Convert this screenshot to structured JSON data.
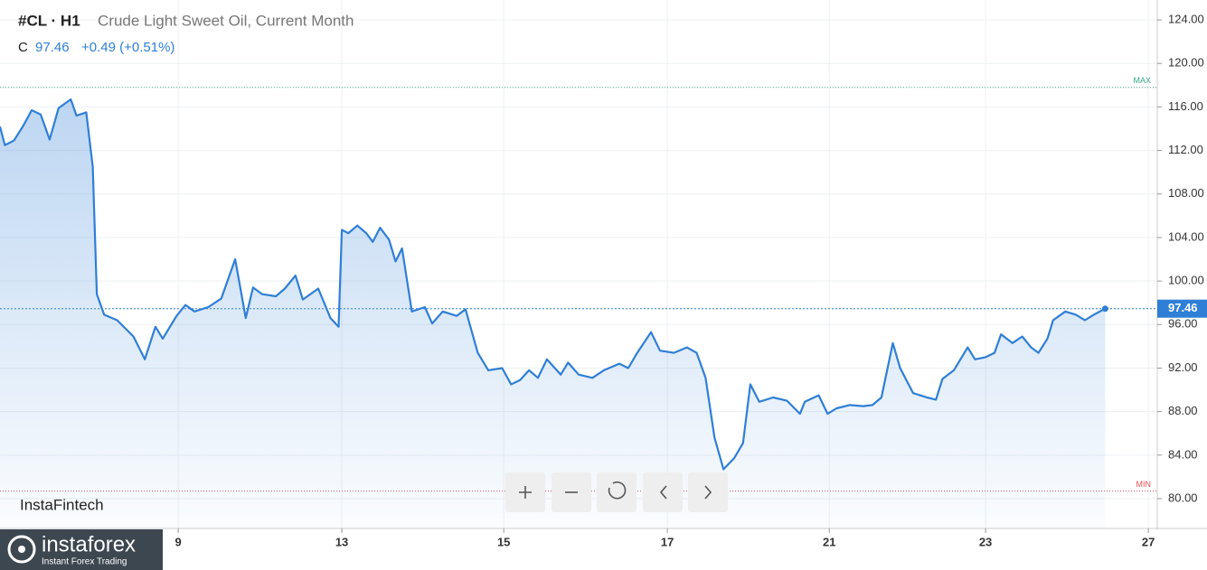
{
  "chart_data": {
    "type": "line",
    "symbol": "#CL · H1",
    "title": "Crude Light Sweet Oil, Current Month",
    "close_label": "C",
    "last_price": 97.46,
    "change": "+0.49 (+0.51%)",
    "watermark": "InstaFintech",
    "brand": "instaforex",
    "brand_tagline": "Instant Forex Trading",
    "color": "#2f7fd6",
    "max_line": {
      "label": "MAX",
      "value": 117.8,
      "color": "#3aa88a"
    },
    "min_line": {
      "label": "MIN",
      "value": 80.7,
      "color": "#e0505a"
    },
    "xlim": [
      0,
      14.22
    ],
    "xticks": [
      {
        "value": 2.19,
        "label": "9"
      },
      {
        "value": 4.2,
        "label": "13"
      },
      {
        "value": 6.19,
        "label": "15"
      },
      {
        "value": 8.2,
        "label": "17"
      },
      {
        "value": 10.19,
        "label": "21"
      },
      {
        "value": 12.11,
        "label": "23"
      },
      {
        "value": 14.11,
        "label": "27"
      }
    ],
    "ylim": [
      77.26,
      125.83
    ],
    "yticks": [
      {
        "value": 80,
        "label": "80.00"
      },
      {
        "value": 84,
        "label": "84.00"
      },
      {
        "value": 88,
        "label": "88.00"
      },
      {
        "value": 92,
        "label": "92.00"
      },
      {
        "value": 96,
        "label": "96.00"
      },
      {
        "value": 100,
        "label": "100.00"
      },
      {
        "value": 104,
        "label": "104.00"
      },
      {
        "value": 108,
        "label": "108.00"
      },
      {
        "value": 112,
        "label": "112.00"
      },
      {
        "value": 116,
        "label": "116.00"
      },
      {
        "value": 120,
        "label": "120.00"
      },
      {
        "value": 124,
        "label": "124.00"
      }
    ],
    "grid": true,
    "series": [
      {
        "name": "#CL",
        "x": [
          0,
          0.06,
          0.17,
          0.28,
          0.39,
          0.5,
          0.61,
          0.72,
          0.87,
          0.94,
          1.06,
          1.14,
          1.19,
          1.28,
          1.44,
          1.64,
          1.78,
          1.91,
          2,
          2.17,
          2.28,
          2.39,
          2.56,
          2.72,
          2.89,
          3.02,
          3.11,
          3.22,
          3.39,
          3.5,
          3.63,
          3.72,
          3.91,
          4.06,
          4.16,
          4.2,
          4.28,
          4.39,
          4.5,
          4.58,
          4.67,
          4.78,
          4.86,
          4.94,
          5.06,
          5.22,
          5.31,
          5.44,
          5.61,
          5.72,
          5.87,
          6,
          6.17,
          6.28,
          6.39,
          6.5,
          6.61,
          6.72,
          6.89,
          6.98,
          7.11,
          7.28,
          7.42,
          7.61,
          7.72,
          7.83,
          8,
          8.11,
          8.28,
          8.44,
          8.56,
          8.67,
          8.78,
          8.89,
          9.02,
          9.13,
          9.22,
          9.33,
          9.5,
          9.67,
          9.83,
          9.89,
          10.06,
          10.17,
          10.28,
          10.44,
          10.61,
          10.72,
          10.83,
          10.97,
          11.06,
          11.22,
          11.39,
          11.5,
          11.58,
          11.72,
          11.89,
          11.98,
          12.11,
          12.22,
          12.3,
          12.44,
          12.56,
          12.67,
          12.76,
          12.87,
          12.94,
          13.09,
          13.22,
          13.33,
          13.44,
          13.58
        ],
        "values": [
          114.2,
          112.5,
          112.9,
          114.2,
          115.7,
          115.3,
          113,
          115.9,
          116.7,
          115.2,
          115.5,
          110.5,
          98.8,
          96.9,
          96.4,
          94.9,
          92.8,
          95.8,
          94.7,
          96.8,
          97.8,
          97.2,
          97.6,
          98.4,
          102,
          96.6,
          99.4,
          98.8,
          98.6,
          99.3,
          100.5,
          98.3,
          99.3,
          96.6,
          95.8,
          104.7,
          104.4,
          105.1,
          104.4,
          103.6,
          104.9,
          103.8,
          101.8,
          103,
          97.2,
          97.6,
          96.1,
          97.2,
          96.8,
          97.4,
          93.4,
          91.8,
          92,
          90.5,
          90.9,
          91.8,
          91.1,
          92.8,
          91.4,
          92.5,
          91.4,
          91.1,
          91.8,
          92.4,
          92,
          93.4,
          95.3,
          93.6,
          93.4,
          93.9,
          93.4,
          91.1,
          85.6,
          82.7,
          83.7,
          85.1,
          90.5,
          88.9,
          89.3,
          89,
          87.8,
          88.9,
          89.5,
          87.8,
          88.3,
          88.6,
          88.5,
          88.6,
          89.3,
          94.3,
          92,
          89.7,
          89.3,
          89.1,
          91,
          91.8,
          93.9,
          92.8,
          93,
          93.4,
          95.1,
          94.3,
          94.9,
          93.9,
          93.4,
          94.7,
          96.4,
          97.2,
          96.9,
          96.4,
          96.9,
          97.46
        ]
      }
    ]
  }
}
